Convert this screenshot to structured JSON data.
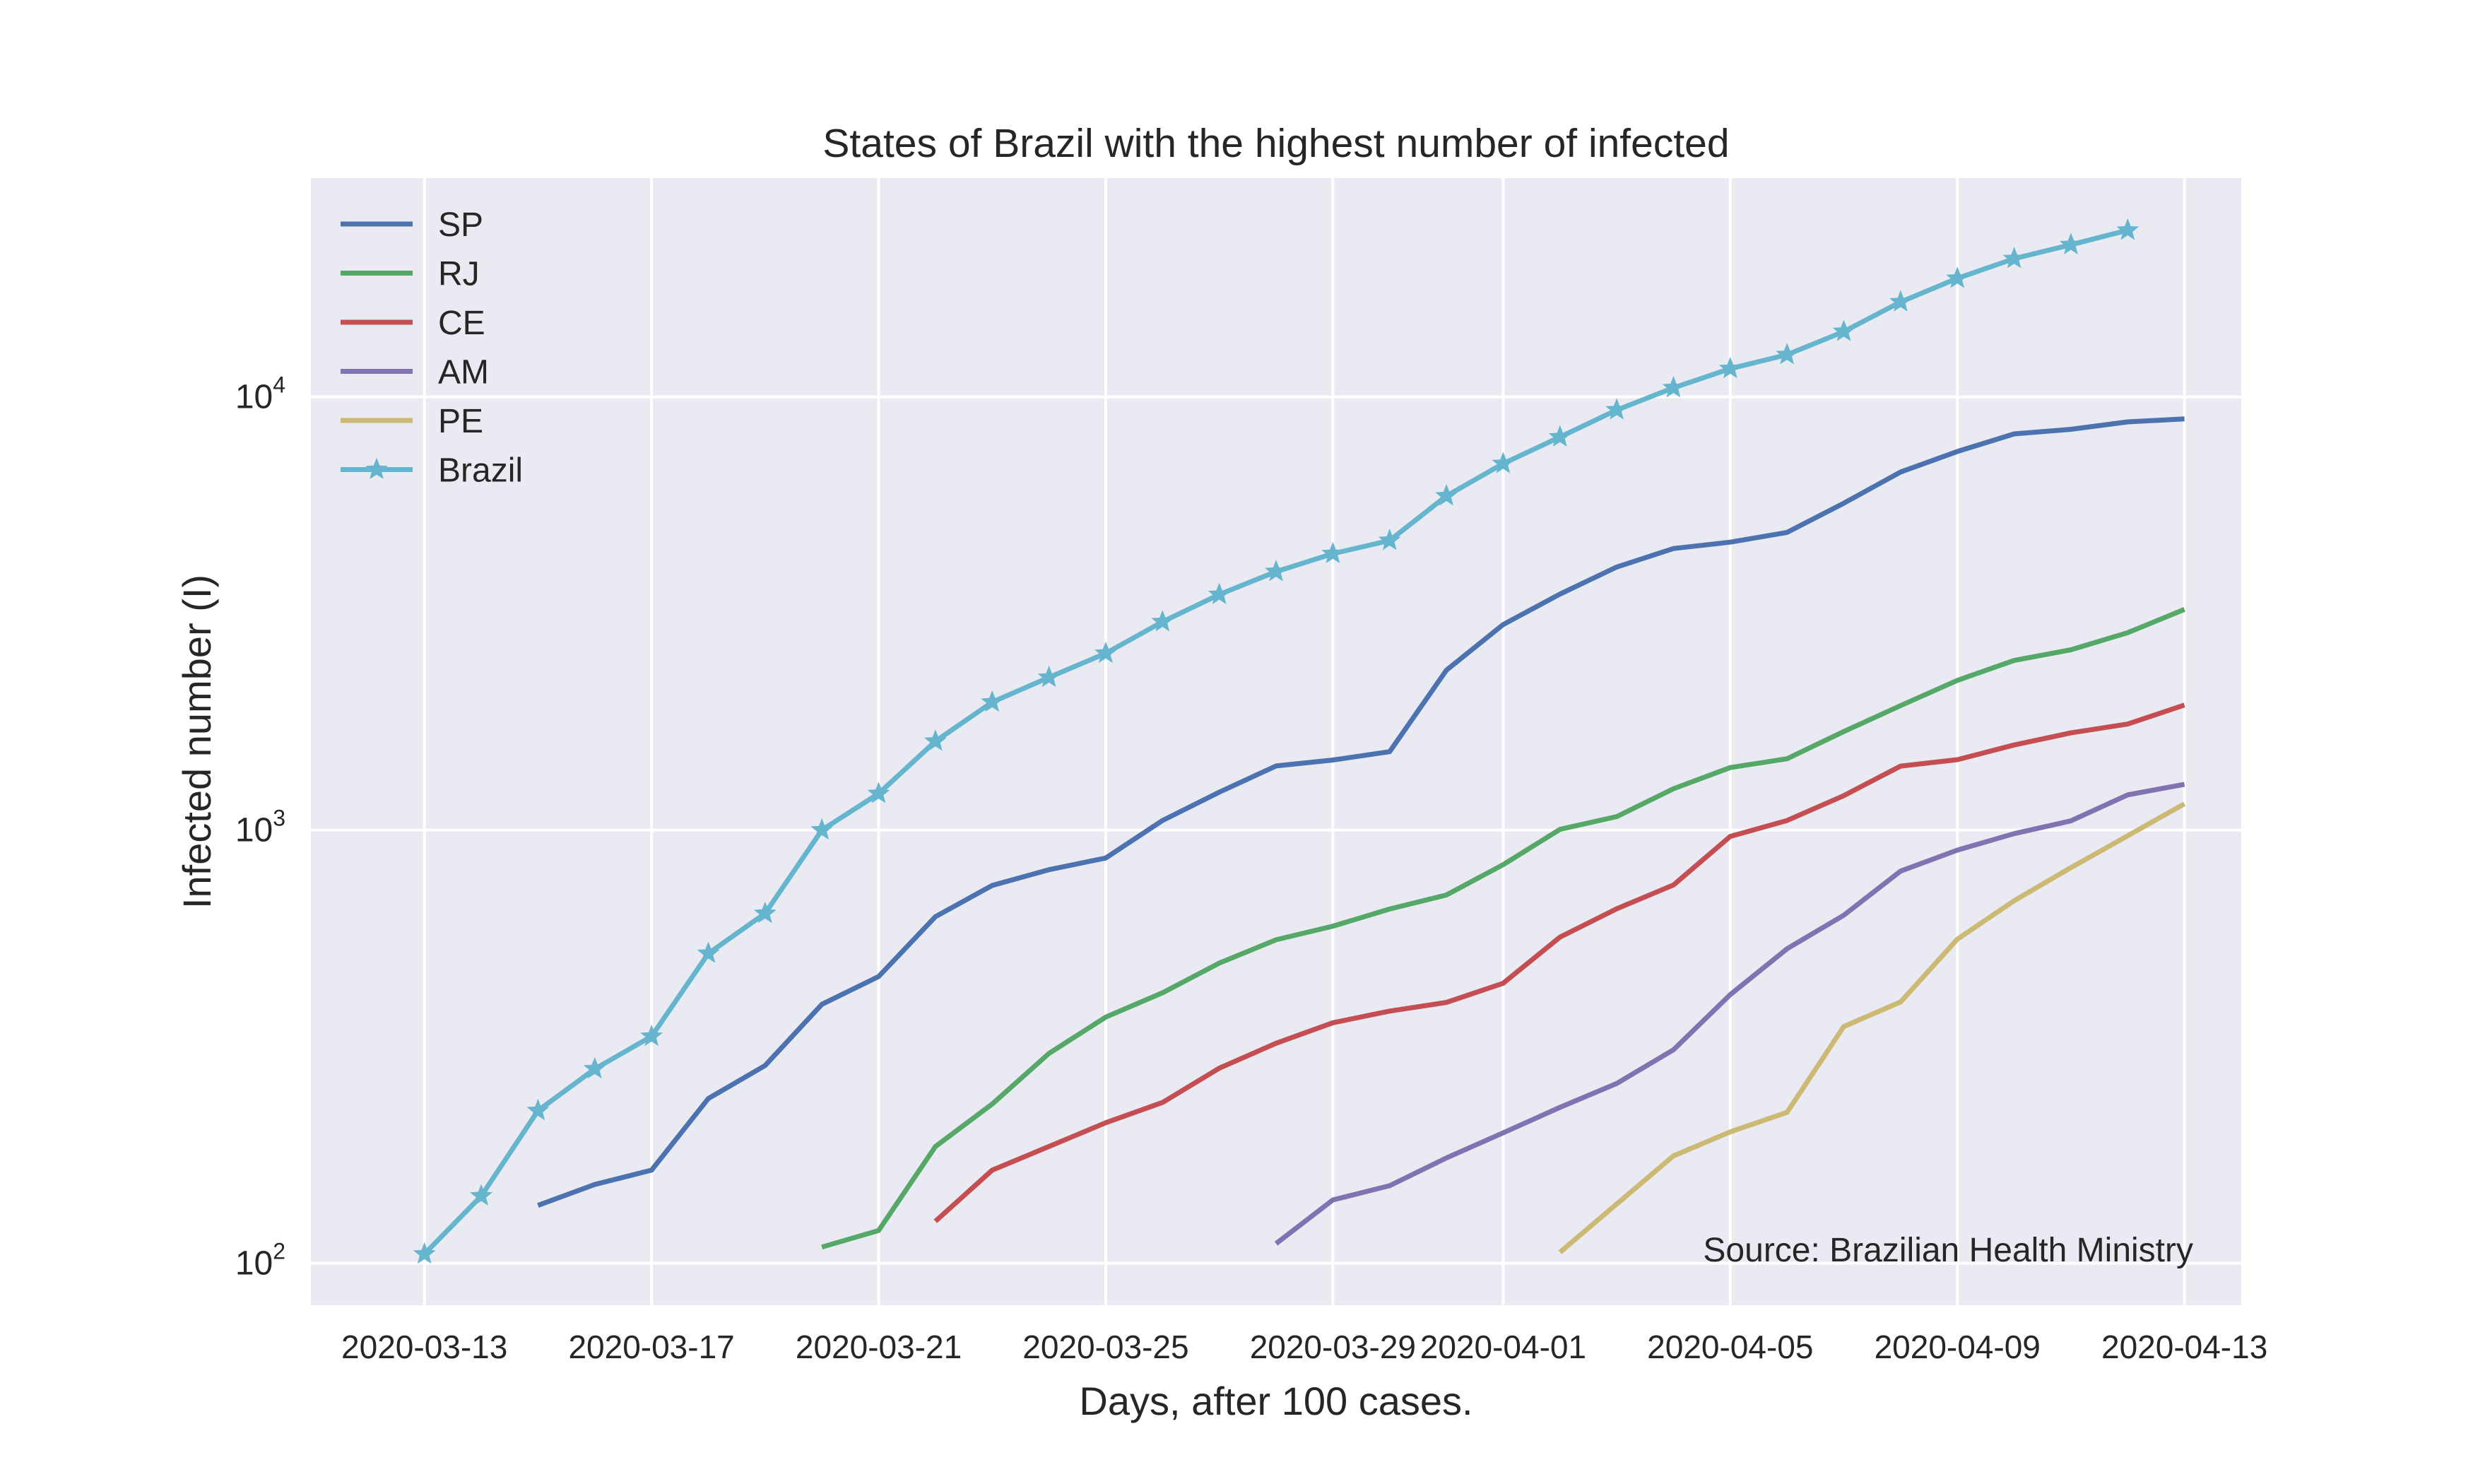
{
  "chart_data": {
    "type": "line",
    "title": "States of Brazil with the highest number of infected",
    "xlabel": "Days, after 100 cases.",
    "ylabel": "Infected number (I)",
    "annotation": "Source: Brazilian Health Ministry",
    "yscale": "log",
    "ylim": [
      80,
      32000
    ],
    "xlim": [
      "2020-03-11",
      "2020-04-14"
    ],
    "grid": true,
    "legend_position": "top-left",
    "x_ticks": [
      "2020-03-13",
      "2020-03-17",
      "2020-03-21",
      "2020-03-25",
      "2020-03-29",
      "2020-04-01",
      "2020-04-05",
      "2020-04-09",
      "2020-04-13"
    ],
    "y_ticks": [
      {
        "value": 100,
        "base": "10",
        "exp": "2"
      },
      {
        "value": 1000,
        "base": "10",
        "exp": "3"
      },
      {
        "value": 10000,
        "base": "10",
        "exp": "4"
      }
    ],
    "series": [
      {
        "name": "SP",
        "color": "#4c72b0",
        "marker": "none",
        "start": "2020-03-15",
        "values": [
          136,
          152,
          164,
          240,
          286,
          396,
          459,
          631,
          745,
          810,
          862,
          1052,
          1223,
          1406,
          1451,
          1517,
          2339,
          2981,
          3506,
          4048,
          4466,
          4620,
          4866,
          5682,
          6708,
          7480,
          8216,
          8419,
          8755,
          8895
        ]
      },
      {
        "name": "RJ",
        "color": "#55a868",
        "marker": "none",
        "start": "2020-03-20",
        "values": [
          109,
          119,
          186,
          233,
          305,
          370,
          421,
          493,
          558,
          600,
          657,
          708,
          832,
          1004,
          1074,
          1246,
          1394,
          1461,
          1688,
          1938,
          2216,
          2464,
          2607,
          2855,
          3231
        ]
      },
      {
        "name": "CE",
        "color": "#c44e52",
        "marker": "none",
        "start": "2020-03-22",
        "values": [
          125,
          164,
          186,
          211,
          235,
          282,
          322,
          359,
          382,
          400,
          443,
          566,
          658,
          747,
          967,
          1052,
          1201,
          1405,
          1454,
          1572,
          1676,
          1757,
          1944
        ]
      },
      {
        "name": "AM",
        "color": "#8172b2",
        "marker": "none",
        "start": "2020-03-28",
        "values": [
          111,
          140,
          151,
          175,
          200,
          229,
          260,
          311,
          417,
          532,
          636,
          804,
          899,
          981,
          1050,
          1206,
          1275
        ]
      },
      {
        "name": "PE",
        "color": "#ccb974",
        "marker": "none",
        "start": "2020-04-02",
        "values": [
          106,
          137,
          177,
          201,
          223,
          352,
          401,
          560,
          687,
          819,
          970,
          1150
        ]
      },
      {
        "name": "Brazil",
        "color": "#64b5cd",
        "marker": "star",
        "start": "2020-03-13",
        "values": [
          105,
          143,
          225,
          281,
          334,
          519,
          642,
          1000,
          1214,
          1603,
          1974,
          2251,
          2559,
          3026,
          3497,
          3951,
          4346,
          4661,
          5906,
          7014,
          8080,
          9328,
          10496,
          11619,
          12516,
          14154,
          16566,
          18778,
          20852,
          22451,
          24250
        ]
      }
    ]
  }
}
